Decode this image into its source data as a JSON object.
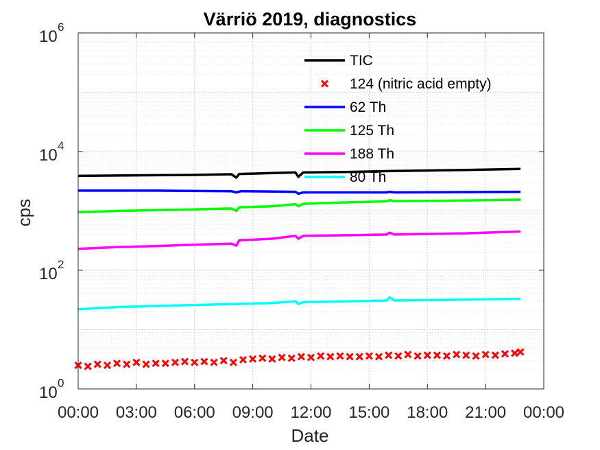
{
  "chart_data": {
    "type": "line",
    "title": "Värriö 2019, diagnostics",
    "xlabel": "Date",
    "ylabel": "cps",
    "yscale": "log",
    "ylim": [
      1,
      1000000
    ],
    "xlim_hours": [
      0,
      24
    ],
    "grid": true,
    "legend_position": "top-right",
    "x_tick_labels": [
      "00:00",
      "03:00",
      "06:00",
      "09:00",
      "12:00",
      "15:00",
      "18:00",
      "21:00",
      "00:00"
    ],
    "y_tick_labels": [
      {
        "base": "10",
        "exp": "0"
      },
      {
        "base": "10",
        "exp": "2"
      },
      {
        "base": "10",
        "exp": "4"
      },
      {
        "base": "10",
        "exp": "6"
      }
    ],
    "series": [
      {
        "name": "TIC",
        "color": "#000000",
        "style": "line",
        "hours": [
          0,
          2,
          4,
          6,
          7.9,
          8.15,
          8.3,
          10,
          11.2,
          11.35,
          11.6,
          14,
          16,
          18,
          20,
          22.8
        ],
        "values": [
          3900,
          3950,
          4000,
          4050,
          4150,
          3650,
          4200,
          4350,
          4450,
          3750,
          4450,
          4550,
          4700,
          4800,
          4900,
          5100
        ]
      },
      {
        "name": "124 (nitric acid empty)",
        "color": "#ff0000",
        "style": "marker",
        "hours": [
          0,
          0.5,
          1,
          1.5,
          2,
          2.5,
          3,
          3.5,
          4,
          4.5,
          5,
          5.5,
          6,
          6.5,
          7,
          7.5,
          8,
          8.5,
          9,
          9.5,
          10,
          10.5,
          11,
          11.5,
          12,
          12.5,
          13,
          13.5,
          14,
          14.5,
          15,
          15.5,
          16,
          16.5,
          17,
          17.5,
          18,
          18.5,
          19,
          19.5,
          20,
          20.5,
          21,
          21.5,
          22,
          22.5,
          22.8
        ],
        "values": [
          2.5,
          2.4,
          2.6,
          2.5,
          2.7,
          2.6,
          2.8,
          2.6,
          2.7,
          2.7,
          2.8,
          2.9,
          2.8,
          2.9,
          2.8,
          3.0,
          2.8,
          3.1,
          3.2,
          3.3,
          3.2,
          3.4,
          3.3,
          3.5,
          3.4,
          3.6,
          3.5,
          3.6,
          3.5,
          3.5,
          3.6,
          3.5,
          3.7,
          3.6,
          3.8,
          3.6,
          3.7,
          3.7,
          3.6,
          3.8,
          3.7,
          3.6,
          3.8,
          3.7,
          3.9,
          4.0,
          4.2
        ]
      },
      {
        "name": "62 Th",
        "color": "#0000ff",
        "style": "line",
        "hours": [
          0,
          4,
          7.9,
          8.15,
          8.4,
          11.2,
          11.35,
          11.6,
          15.9,
          16.05,
          16.3,
          22.8
        ],
        "values": [
          2200,
          2200,
          2150,
          2050,
          2150,
          2100,
          1950,
          2050,
          2050,
          2100,
          2050,
          2100
        ]
      },
      {
        "name": "125 Th",
        "color": "#00ff00",
        "style": "line",
        "hours": [
          0,
          2,
          4,
          6,
          7.9,
          8.15,
          8.3,
          10,
          11.2,
          11.35,
          11.6,
          14,
          15.9,
          16.05,
          16.3,
          20,
          22.8
        ],
        "values": [
          950,
          1000,
          1030,
          1060,
          1100,
          1000,
          1150,
          1200,
          1300,
          1200,
          1320,
          1400,
          1450,
          1520,
          1460,
          1500,
          1550
        ]
      },
      {
        "name": "188 Th",
        "color": "#ff00ff",
        "style": "line",
        "hours": [
          0,
          2,
          4,
          6,
          7.9,
          8.15,
          8.3,
          10,
          11.2,
          11.35,
          11.6,
          14,
          15.9,
          16.05,
          16.3,
          20,
          22.8
        ],
        "values": [
          230,
          245,
          255,
          270,
          280,
          260,
          320,
          340,
          380,
          340,
          380,
          390,
          400,
          430,
          400,
          420,
          450
        ]
      },
      {
        "name": "80 Th",
        "color": "#00ffff",
        "style": "line",
        "hours": [
          0,
          2,
          4,
          6,
          8,
          10,
          11.2,
          11.35,
          11.6,
          14,
          15.9,
          16.05,
          16.3,
          20,
          22.8
        ],
        "values": [
          22,
          24,
          25,
          26,
          27,
          28,
          30,
          27,
          29,
          30,
          31,
          35,
          31,
          32,
          33
        ]
      }
    ]
  }
}
